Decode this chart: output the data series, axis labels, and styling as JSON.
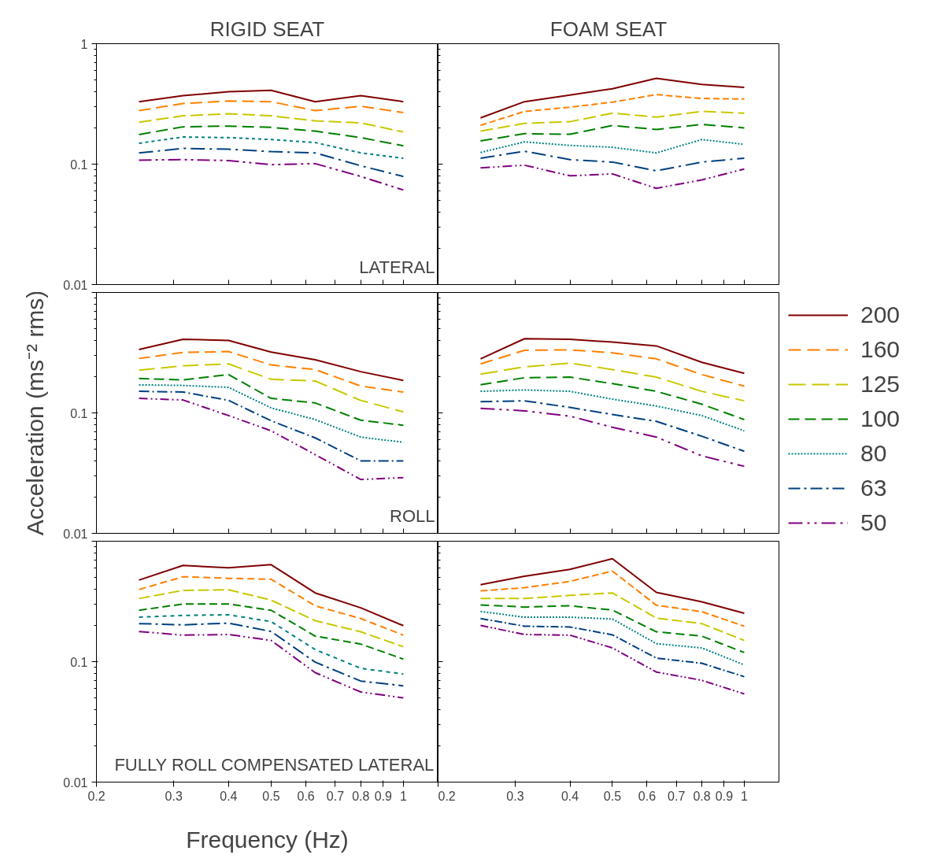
{
  "chart_data": [
    {
      "type": "line",
      "title": "RIGID SEAT",
      "annotations": [
        "LATERAL"
      ],
      "tick_labels": "y",
      "x": [
        0.25,
        0.315,
        0.4,
        0.5,
        0.63,
        0.8,
        1
      ],
      "xlim": [
        0.2,
        1.2
      ],
      "xticks": [
        0.2,
        0.3,
        0.4,
        0.5,
        0.6,
        0.7,
        0.8,
        0.9,
        1
      ],
      "ylim": [
        0.01,
        1
      ],
      "yticks": [
        0.01,
        0.1,
        1
      ],
      "log": "xy",
      "series": [
        {
          "color": "#800000",
          "line_style": "solid",
          "values": [
            0.33,
            0.37,
            0.4,
            0.41,
            0.33,
            0.37,
            0.33
          ]
        },
        {
          "color": "#ff8000",
          "line_style": "dashed",
          "values": [
            0.278,
            0.319,
            0.334,
            0.33,
            0.278,
            0.302,
            0.268
          ]
        },
        {
          "color": "#c8c800",
          "line_style": "longdash",
          "values": [
            0.223,
            0.252,
            0.262,
            0.252,
            0.229,
            0.22,
            0.185
          ]
        },
        {
          "color": "#008000",
          "line_style": "dashed",
          "values": [
            0.176,
            0.204,
            0.207,
            0.202,
            0.188,
            0.166,
            0.142
          ]
        },
        {
          "color": "#008080",
          "line_style": "dotted",
          "values": [
            0.149,
            0.168,
            0.166,
            0.16,
            0.151,
            0.124,
            0.112
          ]
        },
        {
          "color": "#004080",
          "line_style": "dashdot",
          "values": [
            0.124,
            0.135,
            0.133,
            0.127,
            0.124,
            0.097,
            0.079
          ]
        },
        {
          "color": "#800080",
          "line_style": "dashdotdot",
          "values": [
            0.108,
            0.109,
            0.107,
            0.099,
            0.101,
            0.079,
            0.061
          ]
        }
      ]
    },
    {
      "type": "line",
      "title": "FOAM SEAT",
      "tick_labels": false,
      "x": [
        0.25,
        0.315,
        0.4,
        0.5,
        0.63,
        0.8,
        1
      ],
      "xlim": [
        0.2,
        1.2
      ],
      "xticks": [
        0.2,
        0.3,
        0.4,
        0.5,
        0.6,
        0.7,
        0.8,
        0.9,
        1
      ],
      "ylim": [
        0.01,
        1
      ],
      "yticks": [
        0.01,
        0.1,
        1
      ],
      "log": "xy",
      "series": [
        {
          "color": "#800000",
          "line_style": "solid",
          "values": [
            0.242,
            0.33,
            0.374,
            0.423,
            0.515,
            0.459,
            0.433
          ]
        },
        {
          "color": "#ff8000",
          "line_style": "dashed",
          "values": [
            0.21,
            0.274,
            0.297,
            0.327,
            0.378,
            0.351,
            0.347
          ]
        },
        {
          "color": "#c8c800",
          "line_style": "longdash",
          "values": [
            0.188,
            0.218,
            0.225,
            0.265,
            0.246,
            0.274,
            0.265
          ]
        },
        {
          "color": "#008000",
          "line_style": "dashed",
          "values": [
            0.156,
            0.179,
            0.177,
            0.209,
            0.194,
            0.214,
            0.2
          ]
        },
        {
          "color": "#008080",
          "line_style": "dotted",
          "values": [
            0.125,
            0.153,
            0.143,
            0.138,
            0.124,
            0.16,
            0.146
          ]
        },
        {
          "color": "#004080",
          "line_style": "dashdot",
          "values": [
            0.112,
            0.128,
            0.109,
            0.104,
            0.088,
            0.104,
            0.112
          ]
        },
        {
          "color": "#800080",
          "line_style": "dashdotdot",
          "values": [
            0.093,
            0.098,
            0.08,
            0.083,
            0.063,
            0.074,
            0.091
          ]
        }
      ]
    },
    {
      "type": "line",
      "annotations": [
        "ROLL"
      ],
      "ylabel": "Acceleration (ms⁻² rms)",
      "tick_labels": "y",
      "x": [
        0.25,
        0.315,
        0.4,
        0.5,
        0.63,
        0.8,
        1
      ],
      "xlim": [
        0.2,
        1.2
      ],
      "xticks": [
        0.2,
        0.3,
        0.4,
        0.5,
        0.6,
        0.7,
        0.8,
        0.9,
        1
      ],
      "ylim": [
        0.01,
        1
      ],
      "yticks": [
        0.01,
        0.1,
        {
          "value": 1,
          "label": null
        }
      ],
      "log": "xy",
      "series": [
        {
          "color": "#800000",
          "line_style": "solid",
          "values": [
            0.336,
            0.409,
            0.399,
            0.32,
            0.276,
            0.22,
            0.186
          ]
        },
        {
          "color": "#ff8000",
          "line_style": "dashed",
          "values": [
            0.283,
            0.318,
            0.323,
            0.25,
            0.229,
            0.167,
            0.149
          ]
        },
        {
          "color": "#c8c800",
          "line_style": "longdash",
          "values": [
            0.226,
            0.246,
            0.255,
            0.19,
            0.184,
            0.127,
            0.102
          ]
        },
        {
          "color": "#008000",
          "line_style": "dashed",
          "values": [
            0.193,
            0.188,
            0.208,
            0.132,
            0.121,
            0.087,
            0.079
          ]
        },
        {
          "color": "#008080",
          "line_style": "dotted",
          "values": [
            0.171,
            0.169,
            0.163,
            0.11,
            0.088,
            0.063,
            0.057
          ]
        },
        {
          "color": "#004080",
          "line_style": "dashdot",
          "values": [
            0.151,
            0.149,
            0.127,
            0.086,
            0.062,
            0.04,
            0.04
          ]
        },
        {
          "color": "#800080",
          "line_style": "dashdotdot",
          "values": [
            0.132,
            0.128,
            0.095,
            0.071,
            0.045,
            0.028,
            0.029
          ]
        }
      ]
    },
    {
      "type": "line",
      "tick_labels": false,
      "legend": "right",
      "x": [
        0.25,
        0.315,
        0.4,
        0.5,
        0.63,
        0.8,
        1
      ],
      "xlim": [
        0.2,
        1.2
      ],
      "xticks": [
        0.2,
        0.3,
        0.4,
        0.5,
        0.6,
        0.7,
        0.8,
        0.9,
        1
      ],
      "ylim": [
        0.01,
        1
      ],
      "yticks": [
        0.01,
        0.1,
        1
      ],
      "log": "xy",
      "series": [
        {
          "name": "200",
          "color": "#800000",
          "line_style": "solid",
          "values": [
            0.281,
            0.413,
            0.409,
            0.387,
            0.36,
            0.263,
            0.213
          ]
        },
        {
          "name": "160",
          "color": "#ff8000",
          "line_style": "dashed",
          "values": [
            0.255,
            0.331,
            0.334,
            0.315,
            0.281,
            0.208,
            0.167
          ]
        },
        {
          "name": "125",
          "color": "#c8c800",
          "line_style": "longdash",
          "values": [
            0.21,
            0.241,
            0.259,
            0.229,
            0.198,
            0.151,
            0.126
          ]
        },
        {
          "name": "100",
          "color": "#008000",
          "line_style": "dashed",
          "values": [
            0.171,
            0.196,
            0.198,
            0.175,
            0.151,
            0.118,
            0.088
          ]
        },
        {
          "name": "80",
          "color": "#008080",
          "line_style": "dotted",
          "values": [
            0.151,
            0.155,
            0.151,
            0.13,
            0.114,
            0.095,
            0.071
          ]
        },
        {
          "name": "63",
          "color": "#004080",
          "line_style": "dashdot",
          "values": [
            0.124,
            0.126,
            0.111,
            0.097,
            0.085,
            0.064,
            0.048
          ]
        },
        {
          "name": "50",
          "color": "#800080",
          "line_style": "dashdotdot",
          "values": [
            0.109,
            0.104,
            0.094,
            0.076,
            0.063,
            0.044,
            0.036
          ]
        }
      ]
    },
    {
      "type": "line",
      "annotations": [
        "FULLY ROLL COMPENSATED LATERAL"
      ],
      "xlabel": "Frequency (Hz)",
      "x": [
        0.25,
        0.315,
        0.4,
        0.5,
        0.63,
        0.8,
        1
      ],
      "xlim": [
        0.2,
        1.2
      ],
      "xticks": [
        0.2,
        0.3,
        0.4,
        0.5,
        0.6,
        0.7,
        0.8,
        0.9,
        1
      ],
      "ylim": [
        0.01,
        1
      ],
      "yticks": [
        0.01,
        0.1,
        {
          "value": 1,
          "label": null
        }
      ],
      "log": "xy",
      "series": [
        {
          "color": "#800000",
          "line_style": "solid",
          "values": [
            0.476,
            0.629,
            0.602,
            0.638,
            0.372,
            0.28,
            0.199
          ]
        },
        {
          "color": "#ff8000",
          "line_style": "dashed",
          "values": [
            0.397,
            0.507,
            0.492,
            0.483,
            0.291,
            0.228,
            0.166
          ]
        },
        {
          "color": "#c8c800",
          "line_style": "longdash",
          "values": [
            0.334,
            0.391,
            0.395,
            0.324,
            0.219,
            0.177,
            0.133
          ]
        },
        {
          "color": "#008000",
          "line_style": "dashed",
          "values": [
            0.267,
            0.301,
            0.301,
            0.267,
            0.163,
            0.14,
            0.105
          ]
        },
        {
          "color": "#008080",
          "line_style": "dotted",
          "values": [
            0.234,
            0.242,
            0.245,
            0.215,
            0.126,
            0.088,
            0.079
          ]
        },
        {
          "color": "#004080",
          "line_style": "dashdot",
          "values": [
            0.207,
            0.202,
            0.209,
            0.178,
            0.099,
            0.069,
            0.063
          ]
        },
        {
          "color": "#800080",
          "line_style": "dashdotdot",
          "values": [
            0.178,
            0.166,
            0.168,
            0.15,
            0.081,
            0.056,
            0.05
          ]
        }
      ]
    },
    {
      "type": "line",
      "tick_labels": "x",
      "x": [
        0.25,
        0.315,
        0.4,
        0.5,
        0.63,
        0.8,
        1
      ],
      "xlim": [
        0.2,
        1.2
      ],
      "xticks": [
        0.2,
        0.3,
        0.4,
        0.5,
        0.6,
        0.7,
        0.8,
        0.9,
        1
      ],
      "ylim": [
        0.01,
        1
      ],
      "yticks": [
        0.01,
        0.1,
        1
      ],
      "log": "xy",
      "series": [
        {
          "color": "#800000",
          "line_style": "solid",
          "values": [
            0.436,
            0.512,
            0.584,
            0.715,
            0.376,
            0.314,
            0.252
          ]
        },
        {
          "color": "#ff8000",
          "line_style": "dashed",
          "values": [
            0.387,
            0.411,
            0.464,
            0.565,
            0.294,
            0.26,
            0.197
          ]
        },
        {
          "color": "#c8c800",
          "line_style": "longdash",
          "values": [
            0.334,
            0.334,
            0.355,
            0.372,
            0.23,
            0.207,
            0.15
          ]
        },
        {
          "color": "#008000",
          "line_style": "dashed",
          "values": [
            0.296,
            0.284,
            0.291,
            0.268,
            0.177,
            0.163,
            0.119
          ]
        },
        {
          "color": "#008080",
          "line_style": "dotted",
          "values": [
            0.261,
            0.234,
            0.234,
            0.226,
            0.141,
            0.13,
            0.094
          ]
        },
        {
          "color": "#004080",
          "line_style": "dashdot",
          "values": [
            0.228,
            0.197,
            0.194,
            0.167,
            0.107,
            0.097,
            0.075
          ]
        },
        {
          "color": "#800080",
          "line_style": "dashdotdot",
          "values": [
            0.2,
            0.168,
            0.166,
            0.13,
            0.082,
            0.07,
            0.054
          ]
        }
      ]
    }
  ]
}
